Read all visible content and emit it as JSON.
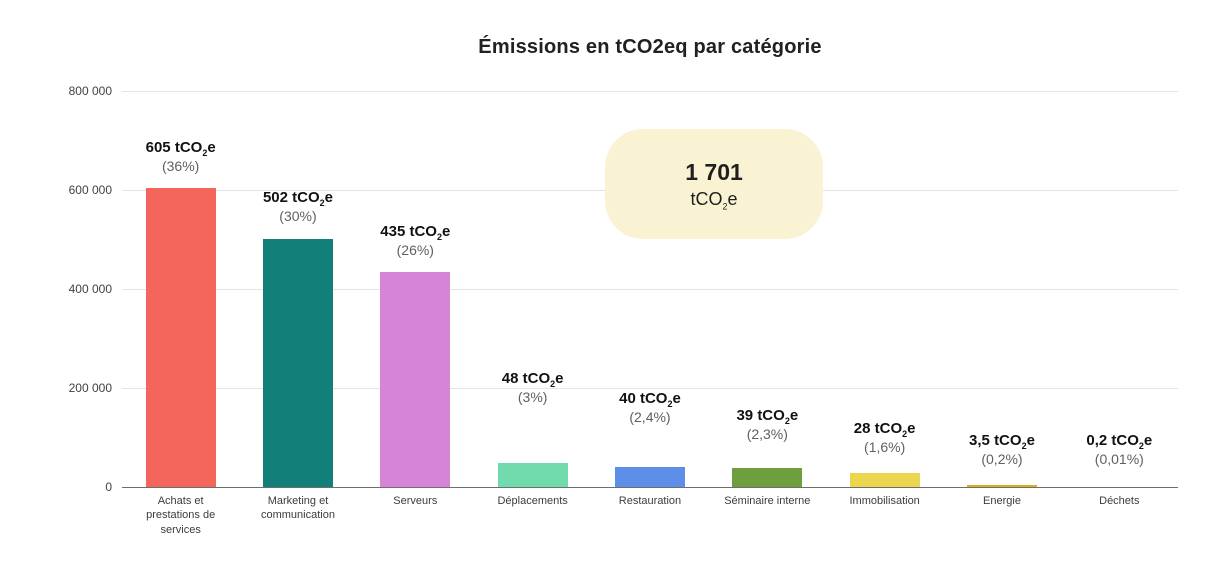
{
  "chart_data": {
    "type": "bar",
    "title": "Émissions en tCO2eq par catégorie",
    "xlabel": "",
    "ylabel": "",
    "ylim": [
      0,
      800000
    ],
    "grid": true,
    "legend_position": "none",
    "yticks": [
      {
        "value": 0,
        "label": "0"
      },
      {
        "value": 200000,
        "label": "200 000"
      },
      {
        "value": 400000,
        "label": "400 000"
      },
      {
        "value": 600000,
        "label": "600 000"
      },
      {
        "value": 800000,
        "label": "800 000"
      }
    ],
    "unit": {
      "pre": "tCO",
      "sub": "2",
      "post": "e"
    },
    "total": {
      "value": "1 701",
      "bg_color": "#faf3d3"
    },
    "bars": [
      {
        "category": "Achats et prestations de services",
        "value": 605000,
        "value_label": "605",
        "pct_label": "(36%)",
        "color": "#f4655c",
        "label_gap": 14
      },
      {
        "category": "Marketing et communication",
        "value": 502000,
        "value_label": "502",
        "pct_label": "(30%)",
        "color": "#128078",
        "label_gap": 15
      },
      {
        "category": "Serveurs",
        "value": 435000,
        "value_label": "435",
        "pct_label": "(26%)",
        "color": "#d684d6",
        "label_gap": 14
      },
      {
        "category": "Déplacements",
        "value": 48000,
        "value_label": "48",
        "pct_label": "(3%)",
        "color": "#72dbae",
        "label_gap": 58
      },
      {
        "category": "Restauration",
        "value": 40000,
        "value_label": "40",
        "pct_label": "(2,4%)",
        "color": "#5e8fe8",
        "label_gap": 42
      },
      {
        "category": "Séminaire interne",
        "value": 39000,
        "value_label": "39",
        "pct_label": "(2,3%)",
        "color": "#6f9e3e",
        "label_gap": 26
      },
      {
        "category": "Immobilisation",
        "value": 28000,
        "value_label": "28",
        "pct_label": "(1,6%)",
        "color": "#edd64f",
        "label_gap": 18
      },
      {
        "category": "Energie",
        "value": 3500,
        "value_label": "3,5",
        "pct_label": "(0,2%)",
        "color": "#dcae1e",
        "label_gap": 18
      },
      {
        "category": "Déchets",
        "value": 200,
        "value_label": "0,2",
        "pct_label": "(0,01%)",
        "color": "#cccccc",
        "label_gap": 20
      }
    ]
  }
}
